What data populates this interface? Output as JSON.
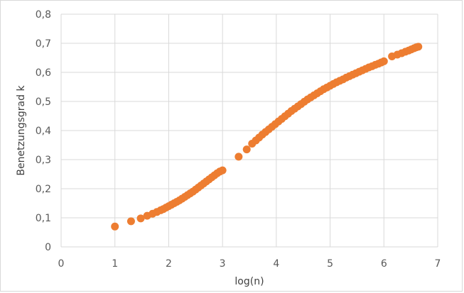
{
  "chart_data": {
    "type": "scatter",
    "title": "",
    "xlabel": "log(n)",
    "ylabel": "Benetzungsgrad k",
    "xlim": [
      0,
      7
    ],
    "ylim": [
      0,
      0.8
    ],
    "x_ticks": [
      "0",
      "1",
      "2",
      "3",
      "4",
      "5",
      "6",
      "7"
    ],
    "y_ticks": [
      "0",
      "0,1",
      "0,2",
      "0,3",
      "0,4",
      "0,5",
      "0,6",
      "0,7",
      "0,8"
    ],
    "grid": true,
    "legend": "none",
    "marker_color": "#ed7d31",
    "series": [
      {
        "points": [
          [
            1.0,
            0.07
          ],
          [
            1.3,
            0.088
          ],
          [
            1.48,
            0.098
          ],
          [
            1.6,
            0.107
          ],
          [
            1.7,
            0.114
          ],
          [
            1.78,
            0.12
          ],
          [
            1.85,
            0.126
          ],
          [
            1.9,
            0.13
          ],
          [
            1.95,
            0.135
          ],
          [
            2.0,
            0.14
          ],
          [
            2.05,
            0.145
          ],
          [
            2.1,
            0.15
          ],
          [
            2.15,
            0.155
          ],
          [
            2.2,
            0.16
          ],
          [
            2.25,
            0.166
          ],
          [
            2.3,
            0.172
          ],
          [
            2.35,
            0.178
          ],
          [
            2.4,
            0.184
          ],
          [
            2.45,
            0.19
          ],
          [
            2.5,
            0.197
          ],
          [
            2.55,
            0.204
          ],
          [
            2.6,
            0.211
          ],
          [
            2.65,
            0.218
          ],
          [
            2.7,
            0.225
          ],
          [
            2.75,
            0.232
          ],
          [
            2.8,
            0.239
          ],
          [
            2.85,
            0.246
          ],
          [
            2.9,
            0.253
          ],
          [
            2.95,
            0.259
          ],
          [
            3.0,
            0.263
          ],
          [
            3.3,
            0.31
          ],
          [
            3.45,
            0.335
          ],
          [
            3.55,
            0.355
          ],
          [
            3.62,
            0.366
          ],
          [
            3.68,
            0.376
          ],
          [
            3.74,
            0.386
          ],
          [
            3.8,
            0.395
          ],
          [
            3.86,
            0.404
          ],
          [
            3.92,
            0.413
          ],
          [
            3.98,
            0.422
          ],
          [
            4.04,
            0.431
          ],
          [
            4.1,
            0.44
          ],
          [
            4.16,
            0.449
          ],
          [
            4.22,
            0.458
          ],
          [
            4.28,
            0.467
          ],
          [
            4.34,
            0.475
          ],
          [
            4.4,
            0.483
          ],
          [
            4.46,
            0.491
          ],
          [
            4.52,
            0.499
          ],
          [
            4.58,
            0.507
          ],
          [
            4.64,
            0.514
          ],
          [
            4.7,
            0.521
          ],
          [
            4.76,
            0.528
          ],
          [
            4.82,
            0.535
          ],
          [
            4.88,
            0.542
          ],
          [
            4.94,
            0.548
          ],
          [
            5.0,
            0.554
          ],
          [
            5.06,
            0.56
          ],
          [
            5.12,
            0.566
          ],
          [
            5.18,
            0.571
          ],
          [
            5.24,
            0.576
          ],
          [
            5.3,
            0.582
          ],
          [
            5.36,
            0.587
          ],
          [
            5.42,
            0.592
          ],
          [
            5.48,
            0.597
          ],
          [
            5.54,
            0.602
          ],
          [
            5.6,
            0.607
          ],
          [
            5.66,
            0.612
          ],
          [
            5.72,
            0.617
          ],
          [
            5.78,
            0.621
          ],
          [
            5.84,
            0.626
          ],
          [
            5.9,
            0.63
          ],
          [
            5.95,
            0.634
          ],
          [
            6.0,
            0.638
          ],
          [
            6.15,
            0.655
          ],
          [
            6.25,
            0.661
          ],
          [
            6.33,
            0.666
          ],
          [
            6.4,
            0.671
          ],
          [
            6.46,
            0.675
          ],
          [
            6.51,
            0.679
          ],
          [
            6.56,
            0.683
          ],
          [
            6.6,
            0.686
          ],
          [
            6.64,
            0.688
          ]
        ]
      }
    ]
  }
}
